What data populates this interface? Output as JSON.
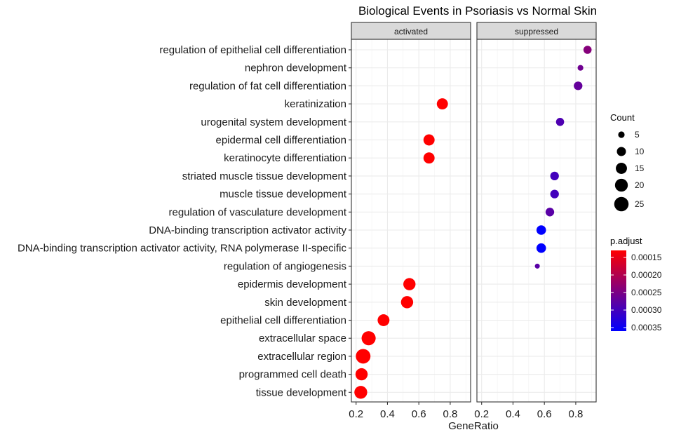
{
  "chart_data": {
    "type": "scatter",
    "title": "Biological Events in Psoriasis vs Normal Skin",
    "xlabel": "GeneRatio",
    "ylabel": "",
    "xlim": [
      0.17,
      0.93
    ],
    "x_ticks": [
      "0.2",
      "0.4",
      "0.6",
      "0.8"
    ],
    "x_tick_values": [
      0.2,
      0.4,
      0.6,
      0.8
    ],
    "grid": true,
    "facets": [
      "activated",
      "suppressed"
    ],
    "categories": [
      "regulation of epithelial cell differentiation",
      "nephron development",
      "regulation of fat cell differentiation",
      "keratinization",
      "urogenital system development",
      "epidermal cell differentiation",
      "keratinocyte differentiation",
      "striated muscle tissue development",
      "muscle tissue development",
      "regulation of vasculature development",
      "DNA-binding transcription activator activity",
      "DNA-binding transcription activator activity, RNA polymerase II-specific",
      "regulation of angiogenesis",
      "epidermis development",
      "skin development",
      "epithelial cell differentiation",
      "extracellular space",
      "extracellular region",
      "programmed cell death",
      "tissue development"
    ],
    "points": [
      {
        "facet": "suppressed",
        "category": "regulation of epithelial cell differentiation",
        "x": 0.875,
        "count": 8,
        "p_adjust": 0.00024
      },
      {
        "facet": "suppressed",
        "category": "nephron development",
        "x": 0.83,
        "count": 4,
        "p_adjust": 0.00026
      },
      {
        "facet": "suppressed",
        "category": "regulation of fat cell differentiation",
        "x": 0.815,
        "count": 9,
        "p_adjust": 0.00027
      },
      {
        "facet": "activated",
        "category": "keratinization",
        "x": 0.75,
        "count": 15,
        "p_adjust": 0.00013
      },
      {
        "facet": "suppressed",
        "category": "urogenital system development",
        "x": 0.7,
        "count": 8,
        "p_adjust": 0.00029
      },
      {
        "facet": "activated",
        "category": "epidermal cell differentiation",
        "x": 0.665,
        "count": 15,
        "p_adjust": 0.00013
      },
      {
        "facet": "activated",
        "category": "keratinocyte differentiation",
        "x": 0.665,
        "count": 15,
        "p_adjust": 0.00013
      },
      {
        "facet": "suppressed",
        "category": "striated muscle tissue development",
        "x": 0.665,
        "count": 9,
        "p_adjust": 0.0003
      },
      {
        "facet": "suppressed",
        "category": "muscle tissue development",
        "x": 0.665,
        "count": 9,
        "p_adjust": 0.0003
      },
      {
        "facet": "suppressed",
        "category": "regulation of vasculature development",
        "x": 0.635,
        "count": 9,
        "p_adjust": 0.00028
      },
      {
        "facet": "suppressed",
        "category": "DNA-binding transcription activator activity",
        "x": 0.58,
        "count": 11,
        "p_adjust": 0.00036
      },
      {
        "facet": "suppressed",
        "category": "DNA-binding transcription activator activity, RNA polymerase II-specific",
        "x": 0.58,
        "count": 11,
        "p_adjust": 0.00036
      },
      {
        "facet": "suppressed",
        "category": "regulation of angiogenesis",
        "x": 0.555,
        "count": 3,
        "p_adjust": 0.00028
      },
      {
        "facet": "activated",
        "category": "epidermis development",
        "x": 0.54,
        "count": 18,
        "p_adjust": 0.00013
      },
      {
        "facet": "activated",
        "category": "skin development",
        "x": 0.525,
        "count": 18,
        "p_adjust": 0.00013
      },
      {
        "facet": "activated",
        "category": "epithelial cell differentiation",
        "x": 0.375,
        "count": 17,
        "p_adjust": 0.00013
      },
      {
        "facet": "activated",
        "category": "extracellular space",
        "x": 0.28,
        "count": 24,
        "p_adjust": 0.00013
      },
      {
        "facet": "activated",
        "category": "extracellular region",
        "x": 0.245,
        "count": 26,
        "p_adjust": 0.00013
      },
      {
        "facet": "activated",
        "category": "programmed cell death",
        "x": 0.235,
        "count": 18,
        "p_adjust": 0.00013
      },
      {
        "facet": "activated",
        "category": "tissue development",
        "x": 0.23,
        "count": 20,
        "p_adjust": 0.00013
      }
    ],
    "legend": {
      "size_title": "Count",
      "size_labels": [
        "5",
        "10",
        "15",
        "20",
        "25"
      ],
      "size_values": [
        5,
        10,
        15,
        20,
        25
      ],
      "color_title": "p.adjust",
      "color_labels": [
        "0.00015",
        "0.00020",
        "0.00025",
        "0.00030",
        "0.00035"
      ],
      "color_values": [
        0.00015,
        0.0002,
        0.00025,
        0.0003,
        0.00035
      ],
      "color_range": [
        0.00013,
        0.00036
      ],
      "color_low": "#ff0000",
      "color_high": "#0000ff",
      "placement": "right"
    }
  }
}
